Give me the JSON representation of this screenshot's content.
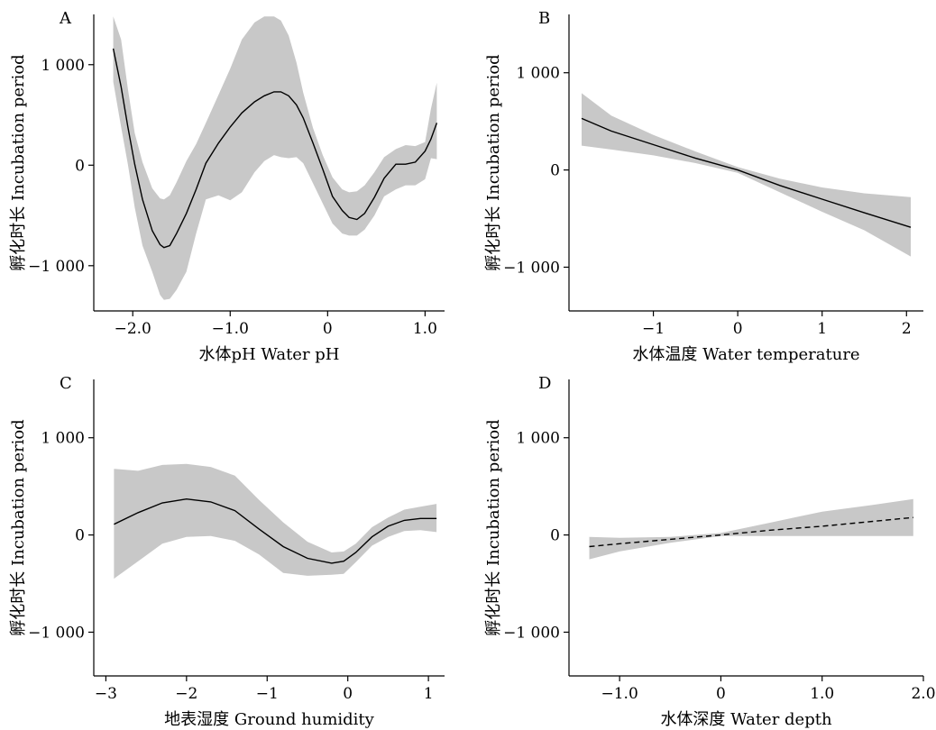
{
  "chart_data": [
    {
      "panel": "A",
      "type": "line",
      "xlabel": "水体pH Water pH",
      "ylabel": "孵化时长 Incubation period",
      "xlim": [
        -2.4,
        1.2
      ],
      "ylim": [
        -1450,
        1500
      ],
      "xticks": [
        -2.0,
        -1.0,
        0,
        1.0
      ],
      "xtick_labels": [
        "−2.0",
        "−1.0",
        "0",
        "1.0"
      ],
      "yticks": [
        -1000,
        0,
        1000
      ],
      "ytick_labels": [
        "−1 000",
        "0",
        "1 000"
      ],
      "line_style": "solid",
      "series": [
        {
          "x": [
            -2.2,
            -2.12,
            -2.05,
            -1.98,
            -1.9,
            -1.8,
            -1.72,
            -1.68,
            -1.62,
            -1.55,
            -1.45,
            -1.35,
            -1.25,
            -1.12,
            -1.0,
            -0.88,
            -0.75,
            -0.65,
            -0.55,
            -0.48,
            -0.4,
            -0.32,
            -0.25,
            -0.15,
            -0.05,
            0.05,
            0.15,
            0.22,
            0.3,
            0.38,
            0.48,
            0.58,
            0.7,
            0.8,
            0.9,
            1.0,
            1.06,
            1.12
          ],
          "y": [
            1160,
            780,
            380,
            10,
            -340,
            -650,
            -790,
            -820,
            -800,
            -680,
            -480,
            -240,
            20,
            220,
            380,
            520,
            630,
            690,
            730,
            730,
            690,
            600,
            470,
            220,
            -40,
            -310,
            -450,
            -520,
            -540,
            -480,
            -320,
            -130,
            10,
            10,
            30,
            140,
            260,
            420
          ],
          "upper": [
            1480,
            1250,
            760,
            320,
            30,
            -230,
            -330,
            -340,
            -300,
            -170,
            40,
            210,
            420,
            700,
            960,
            1250,
            1420,
            1480,
            1480,
            1440,
            1290,
            1020,
            720,
            370,
            100,
            -120,
            -240,
            -270,
            -260,
            -200,
            -70,
            80,
            160,
            200,
            190,
            230,
            560,
            820
          ],
          "lower": [
            830,
            380,
            10,
            -420,
            -800,
            -1060,
            -1290,
            -1340,
            -1330,
            -1240,
            -1060,
            -680,
            -340,
            -300,
            -350,
            -270,
            -70,
            40,
            100,
            80,
            70,
            80,
            20,
            -180,
            -380,
            -580,
            -680,
            -700,
            -700,
            -640,
            -500,
            -310,
            -240,
            -200,
            -200,
            -140,
            70,
            60
          ]
        }
      ]
    },
    {
      "panel": "B",
      "type": "line",
      "xlabel": "水体温度 Water temperature",
      "ylabel": "孵化时长 Incubation period",
      "xlim": [
        -2.0,
        2.2
      ],
      "ylim": [
        -1450,
        1600
      ],
      "xticks": [
        -1,
        0,
        1,
        2
      ],
      "xtick_labels": [
        "−1",
        "0",
        "1",
        "2"
      ],
      "yticks": [
        -1000,
        0,
        1000
      ],
      "ytick_labels": [
        "−1 000",
        "0",
        "1 000"
      ],
      "line_style": "solid",
      "series": [
        {
          "x": [
            -1.85,
            -1.5,
            -1.0,
            -0.5,
            0.0,
            0.5,
            1.0,
            1.5,
            2.05
          ],
          "y": [
            530,
            400,
            260,
            120,
            0,
            -160,
            -300,
            -440,
            -590
          ],
          "upper": [
            790,
            560,
            360,
            190,
            30,
            -90,
            -180,
            -240,
            -280
          ],
          "lower": [
            250,
            210,
            150,
            70,
            -30,
            -230,
            -430,
            -620,
            -890
          ]
        }
      ]
    },
    {
      "panel": "C",
      "type": "line",
      "xlabel": "地表湿度 Ground humidity",
      "ylabel": "孵化时长 Incubation period",
      "xlim": [
        -3.15,
        1.2
      ],
      "ylim": [
        -1450,
        1600
      ],
      "xticks": [
        -3,
        -2,
        -1,
        0,
        1
      ],
      "xtick_labels": [
        "−3",
        "−2",
        "−1",
        "0",
        "1"
      ],
      "yticks": [
        -1000,
        0,
        1000
      ],
      "ytick_labels": [
        "−1 000",
        "0",
        "1 000"
      ],
      "line_style": "solid",
      "series": [
        {
          "x": [
            -2.9,
            -2.6,
            -2.3,
            -2.0,
            -1.7,
            -1.4,
            -1.1,
            -0.8,
            -0.5,
            -0.2,
            -0.05,
            0.1,
            0.3,
            0.5,
            0.7,
            0.9,
            1.1
          ],
          "y": [
            110,
            230,
            330,
            370,
            340,
            250,
            60,
            -120,
            -240,
            -290,
            -270,
            -180,
            -20,
            90,
            150,
            170,
            170
          ],
          "upper": [
            680,
            660,
            720,
            730,
            700,
            610,
            360,
            130,
            -70,
            -180,
            -170,
            -90,
            80,
            180,
            260,
            290,
            320
          ],
          "lower": [
            -450,
            -270,
            -90,
            -20,
            -10,
            -60,
            -200,
            -390,
            -420,
            -410,
            -400,
            -280,
            -110,
            -20,
            40,
            50,
            30
          ]
        }
      ]
    },
    {
      "panel": "D",
      "type": "line",
      "xlabel": "水体深度 Water depth",
      "ylabel": "孵化时长 Incubation period",
      "xlim": [
        -1.5,
        2.0
      ],
      "ylim": [
        -1450,
        1600
      ],
      "xticks": [
        -1.0,
        0,
        1.0,
        2.0
      ],
      "xtick_labels": [
        "−1.0",
        "0",
        "1.0",
        "2.0"
      ],
      "yticks": [
        -1000,
        0,
        1000
      ],
      "ytick_labels": [
        "−1 000",
        "0",
        "1 000"
      ],
      "line_style": "dashed",
      "series": [
        {
          "x": [
            -1.3,
            -1.0,
            -0.5,
            0.0,
            0.5,
            1.0,
            1.5,
            1.9
          ],
          "y": [
            -120,
            -90,
            -45,
            0,
            50,
            90,
            140,
            180
          ],
          "upper": [
            -20,
            -30,
            -20,
            20,
            130,
            240,
            310,
            370
          ],
          "lower": [
            -250,
            -170,
            -80,
            -10,
            -10,
            -10,
            -10,
            -10
          ]
        }
      ]
    }
  ]
}
